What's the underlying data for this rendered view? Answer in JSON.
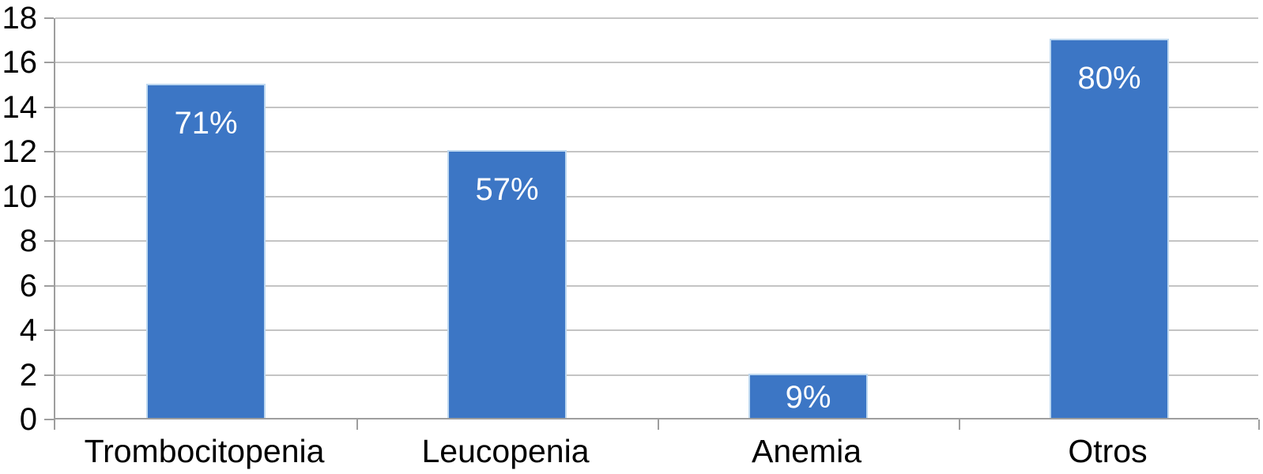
{
  "chart_data": {
    "type": "bar",
    "categories": [
      "Trombocitopenia",
      "Leucopenia",
      "Anemia",
      "Otros"
    ],
    "values": [
      15,
      12,
      2,
      17
    ],
    "data_labels": [
      "71%",
      "57%",
      "9%",
      "80%"
    ],
    "yticks": [
      0,
      2,
      4,
      6,
      8,
      10,
      12,
      14,
      16,
      18
    ],
    "ylim": [
      0,
      18
    ],
    "ytick_step": 2,
    "xlabel": "",
    "ylabel": "",
    "grid": "horizontal",
    "legend": "none",
    "data_label_position": "inside-end",
    "colors": {
      "bar_fill": "#3C76C5",
      "bar_edge": "#BED8F0",
      "data_label": "#FFFFFF",
      "gridline": "#C4C4C4",
      "axis": "#9E9E9E",
      "text": "#000000",
      "background": "#FFFFFF"
    }
  }
}
